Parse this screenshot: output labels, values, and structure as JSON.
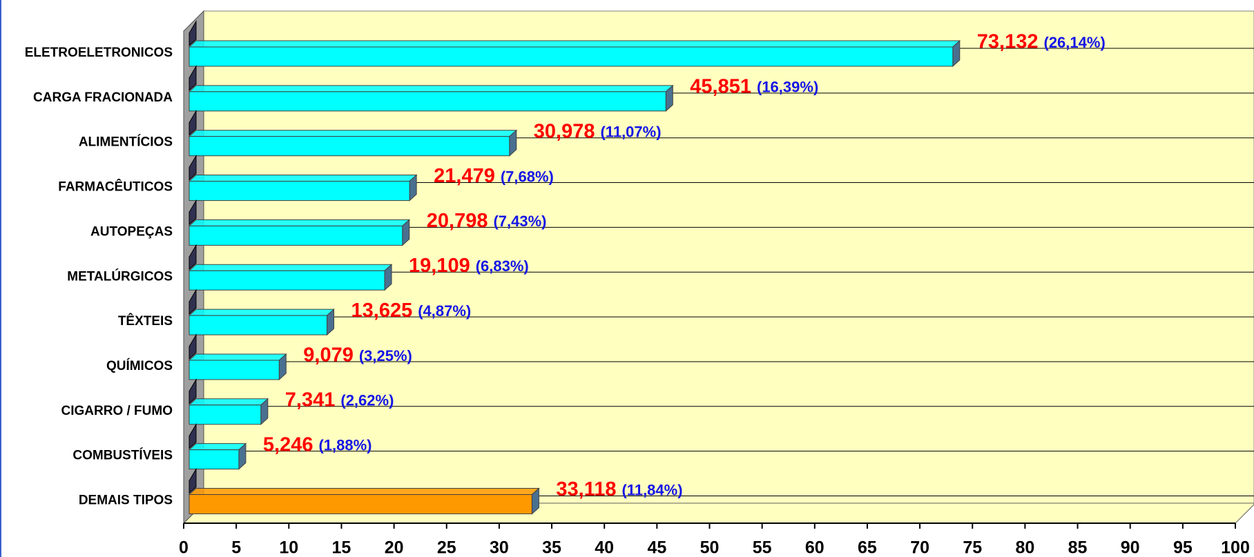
{
  "chart_data": {
    "type": "bar3d_horizontal",
    "categories": [
      "ELETROELETRONICOS",
      "CARGA FRACIONADA",
      "ALIMENTÍCIOS",
      "FARMACÊUTICOS",
      "AUTOPEÇAS",
      "METALÚRGICOS",
      "TÊXTEIS",
      "QUÍMICOS",
      "CIGARRO / FUMO",
      "COMBUSTÍVEIS",
      "DEMAIS TIPOS"
    ],
    "values": [
      73.132,
      45.851,
      30.978,
      21.479,
      20.798,
      19.109,
      13.625,
      9.079,
      7.341,
      5.246,
      33.118
    ],
    "value_labels": [
      "73,132",
      "45,851",
      "30,978",
      "21,479",
      "20,798",
      "19,109",
      "13,625",
      "9,079",
      "7,341",
      "5,246",
      "33,118"
    ],
    "shares": [
      26.14,
      16.39,
      11.07,
      7.68,
      7.43,
      6.83,
      4.87,
      3.25,
      2.62,
      1.88,
      11.84
    ],
    "share_labels": [
      "(26,14%)",
      "(16,39%)",
      "(11,07%)",
      "(7,68%)",
      "(7,43%)",
      "(6,83%)",
      "(4,87%)",
      "(3,25%)",
      "(2,62%)",
      "(1,88%)",
      "(11,84%)"
    ],
    "colors": [
      "#00ffff",
      "#00ffff",
      "#00ffff",
      "#00ffff",
      "#00ffff",
      "#00ffff",
      "#00ffff",
      "#00ffff",
      "#00ffff",
      "#00ffff",
      "#ff9900"
    ],
    "xlim": [
      0,
      100
    ],
    "xticks": [
      0,
      5,
      10,
      15,
      20,
      25,
      30,
      35,
      40,
      45,
      50,
      55,
      60,
      65,
      70,
      75,
      80,
      85,
      90,
      95,
      100
    ],
    "grid": true
  }
}
